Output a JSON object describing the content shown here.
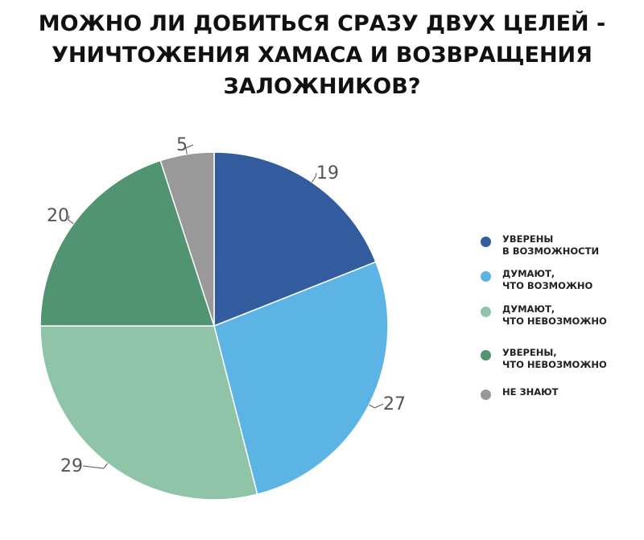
{
  "title_lines": [
    "МОЖНО ЛИ ДОБИТЬСЯ СРАЗУ ДВУХ ЦЕЛЕЙ -",
    "УНИЧТОЖЕНИЯ ХАМАСА И ВОЗВРАЩЕНИЯ",
    "ЗАЛОЖНИКОВ?"
  ],
  "legend": [
    {
      "lines": [
        "УВЕРЕНЫ",
        "В ВОЗМОЖНОСТИ"
      ],
      "color": "#335c9e"
    },
    {
      "lines": [
        "ДУМАЮТ,",
        "ЧТО ВОЗМОЖНО"
      ],
      "color": "#5cb4e4"
    },
    {
      "lines": [
        "ДУМАЮТ,",
        "ЧТО НЕВОЗМОЖНО"
      ],
      "color": "#8fc4a8"
    },
    {
      "lines": [
        "УВЕРЕНЫ,",
        "ЧТО НЕВОЗМОЖНО"
      ],
      "color": "#519471"
    },
    {
      "lines": [
        "НЕ ЗНАЮТ"
      ],
      "color": "#999999"
    }
  ],
  "chart_data": {
    "type": "pie",
    "title": "МОЖНО ЛИ ДОБИТЬСЯ СРАЗУ ДВУХ ЦЕЛЕЙ - УНИЧТОЖЕНИЯ ХАМАСА И ВОЗВРАЩЕНИЯ ЗАЛОЖНИКОВ?",
    "legend_position": "right",
    "slices": [
      {
        "label": "УВЕРЕНЫ В ВОЗМОЖНОСТИ",
        "value": 19,
        "color": "#335c9e"
      },
      {
        "label": "ДУМАЮТ, ЧТО ВОЗМОЖНО",
        "value": 27,
        "color": "#5cb4e4"
      },
      {
        "label": "ДУМАЮТ, ЧТО НЕВОЗМОЖНО",
        "value": 29,
        "color": "#8fc4a8"
      },
      {
        "label": "УВЕРЕНЫ, ЧТО НЕВОЗМОЖНО",
        "value": 20,
        "color": "#519471"
      },
      {
        "label": "НЕ ЗНАЮТ",
        "value": 5,
        "color": "#999999"
      }
    ]
  }
}
